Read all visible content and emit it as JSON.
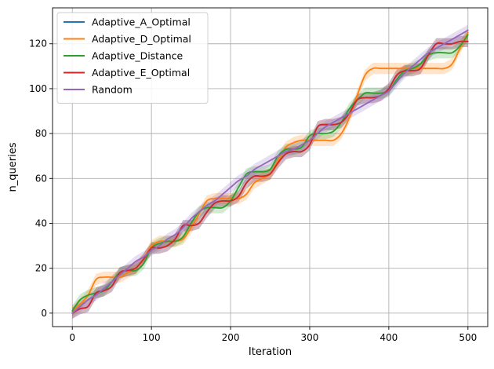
{
  "chart_data": {
    "type": "line",
    "xlabel": "Iteration",
    "ylabel": "n_queries",
    "xlim": [
      -25,
      525
    ],
    "ylim": [
      -6,
      136
    ],
    "xticks": [
      0,
      100,
      200,
      300,
      400,
      500
    ],
    "yticks": [
      0,
      20,
      40,
      60,
      80,
      100,
      120
    ],
    "grid": true,
    "legend_position": "top-left",
    "series": [
      {
        "name": "Adaptive_A_Optimal",
        "color": "#1f77b4",
        "x": [
          0,
          10,
          20,
          30,
          40,
          50,
          60,
          70,
          80,
          90,
          100,
          110,
          120,
          130,
          140,
          150,
          160,
          170,
          180,
          190,
          200,
          210,
          220,
          230,
          240,
          250,
          260,
          270,
          280,
          290,
          300,
          310,
          320,
          330,
          340,
          350,
          360,
          370,
          380,
          390,
          400,
          410,
          420,
          430,
          440,
          450,
          460,
          470,
          480,
          490,
          500
        ],
        "y": [
          0,
          2,
          3,
          9,
          10,
          12,
          18,
          19,
          20,
          24,
          29,
          29,
          30,
          33,
          39,
          39,
          40,
          45,
          49,
          50,
          50,
          52,
          58,
          61,
          61,
          62,
          67,
          71,
          72,
          72,
          75,
          83,
          84,
          84,
          85,
          89,
          95,
          96,
          96,
          97,
          100,
          106,
          108,
          108,
          109,
          115,
          120,
          120,
          120,
          121,
          121
        ]
      },
      {
        "name": "Adaptive_D_Optimal",
        "color": "#ff7f0e",
        "x": [
          0,
          10,
          20,
          30,
          40,
          50,
          60,
          70,
          80,
          90,
          100,
          110,
          120,
          130,
          140,
          150,
          160,
          170,
          180,
          190,
          200,
          210,
          220,
          230,
          240,
          250,
          260,
          270,
          280,
          290,
          300,
          310,
          320,
          330,
          340,
          350,
          360,
          370,
          380,
          390,
          400,
          410,
          420,
          430,
          440,
          450,
          460,
          470,
          480,
          490,
          500
        ],
        "y": [
          1,
          4,
          8,
          15,
          16,
          16,
          16,
          18,
          20,
          24,
          30,
          32,
          32,
          32,
          33,
          38,
          44,
          50,
          51,
          51,
          51,
          51,
          53,
          58,
          60,
          62,
          68,
          74,
          76,
          77,
          77,
          77,
          77,
          77,
          80,
          87,
          97,
          106,
          109,
          109,
          109,
          109,
          109,
          109,
          109,
          109,
          109,
          109,
          111,
          118,
          125
        ]
      },
      {
        "name": "Adaptive_Distance",
        "color": "#2ca02c",
        "x": [
          0,
          10,
          20,
          30,
          40,
          50,
          60,
          70,
          80,
          90,
          100,
          110,
          120,
          130,
          140,
          150,
          160,
          170,
          180,
          190,
          200,
          210,
          220,
          230,
          240,
          250,
          260,
          270,
          280,
          290,
          300,
          310,
          320,
          330,
          340,
          350,
          360,
          370,
          380,
          390,
          400,
          410,
          420,
          430,
          440,
          450,
          460,
          470,
          480,
          490,
          500
        ],
        "y": [
          1,
          6,
          8,
          9,
          10,
          14,
          18,
          19,
          19,
          22,
          29,
          31,
          32,
          32,
          34,
          40,
          45,
          47,
          47,
          47,
          50,
          56,
          62,
          63,
          63,
          64,
          70,
          73,
          73,
          74,
          79,
          80,
          80,
          81,
          85,
          91,
          95,
          98,
          98,
          98,
          99,
          104,
          108,
          109,
          111,
          115,
          116,
          116,
          116,
          119,
          124
        ]
      },
      {
        "name": "Adaptive_E_Optimal",
        "color": "#d62728",
        "x": [
          0,
          10,
          20,
          30,
          40,
          50,
          60,
          70,
          80,
          90,
          100,
          110,
          120,
          130,
          140,
          150,
          160,
          170,
          180,
          190,
          200,
          210,
          220,
          230,
          240,
          250,
          260,
          270,
          280,
          290,
          300,
          310,
          320,
          330,
          340,
          350,
          360,
          370,
          380,
          390,
          400,
          410,
          420,
          430,
          440,
          450,
          460,
          470,
          480,
          490,
          500
        ],
        "y": [
          0,
          2,
          3,
          9,
          10,
          12,
          18,
          19,
          20,
          24,
          29,
          29,
          30,
          33,
          39,
          39,
          40,
          45,
          49,
          50,
          50,
          52,
          58,
          61,
          61,
          62,
          67,
          71,
          72,
          72,
          75,
          83,
          84,
          84,
          85,
          89,
          95,
          96,
          96,
          97,
          100,
          106,
          108,
          108,
          109,
          115,
          120,
          120,
          120,
          121,
          121
        ]
      },
      {
        "name": "Random",
        "color": "#9467bd",
        "x": [
          0,
          10,
          20,
          30,
          40,
          50,
          60,
          70,
          80,
          90,
          100,
          110,
          120,
          130,
          140,
          150,
          160,
          170,
          180,
          190,
          200,
          210,
          220,
          230,
          240,
          250,
          260,
          270,
          280,
          290,
          300,
          310,
          320,
          330,
          340,
          350,
          360,
          370,
          380,
          390,
          400,
          410,
          420,
          430,
          440,
          450,
          460,
          470,
          480,
          490,
          500
        ],
        "y": [
          0,
          3,
          6,
          8,
          11,
          14,
          17,
          20,
          23,
          25,
          28,
          30,
          33,
          35,
          38,
          42,
          45,
          48,
          50,
          53,
          56,
          59,
          61,
          64,
          66,
          68,
          70,
          72,
          73,
          75,
          77,
          80,
          83,
          85,
          87,
          89,
          91,
          93,
          95,
          97,
          99,
          103,
          107,
          110,
          113,
          116,
          118,
          120,
          122,
          124,
          126
        ]
      }
    ]
  }
}
